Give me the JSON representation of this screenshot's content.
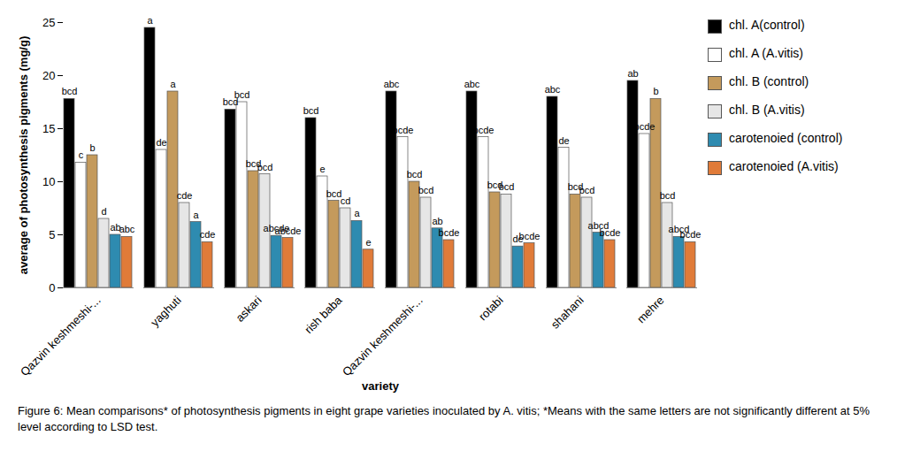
{
  "chart_data": {
    "type": "bar",
    "x_label": "variety",
    "y_label": "average of photosynthesis pigments (mg/g)",
    "caption": "Figure 6: Mean comparisons* of photosynthesis pigments in eight grape varieties inoculated by A. vitis; *Means with the same letters are not significantly different at 5% level according to LSD test.",
    "categories": [
      "Qazvin keshmeshi-...",
      "yaghuti",
      "askari",
      "rish baba",
      "Qazvin keshmeshi-...",
      "rotabi",
      "shahani",
      "mehre"
    ],
    "series": [
      {
        "name": "chl. A(control)",
        "color": "#000000",
        "values": [
          17.8,
          24.5,
          16.8,
          16.0,
          18.5,
          18.5,
          18.0,
          19.5
        ],
        "annotations": [
          "bcd",
          "a",
          "bcd",
          "bcd",
          "abc",
          "abc",
          "abc",
          "ab"
        ]
      },
      {
        "name": "chl. A (A.vitis)",
        "color": "#ffffff",
        "values": [
          11.8,
          13.0,
          17.5,
          10.5,
          14.2,
          14.2,
          13.2,
          14.5
        ],
        "annotations": [
          "c",
          "de",
          "bcd",
          "e",
          "bcde",
          "bcde",
          "de",
          "bcde"
        ]
      },
      {
        "name": "chl. B (control)",
        "color": "#c49a5c",
        "values": [
          12.5,
          18.5,
          11.0,
          8.2,
          10.0,
          9.0,
          8.8,
          17.8
        ],
        "annotations": [
          "b",
          "a",
          "bcd",
          "bcd",
          "bcd",
          "bcd",
          "bcd",
          "b"
        ]
      },
      {
        "name": "chl. B (A.vitis)",
        "color": "#e6e6e6",
        "values": [
          6.5,
          8.0,
          10.7,
          7.5,
          8.5,
          8.8,
          8.5,
          8.0
        ],
        "annotations": [
          "d",
          "cde",
          "bcd",
          "cd",
          "bcd",
          "bcd",
          "bcd",
          "bcd"
        ]
      },
      {
        "name": "carotenoied (control)",
        "color": "#2e8bb0",
        "values": [
          5.0,
          6.2,
          4.9,
          6.3,
          5.6,
          3.9,
          5.2,
          4.8
        ],
        "annotations": [
          "ab",
          "a",
          "abcde",
          "a",
          "ab",
          "de",
          "abcd",
          "abcd"
        ]
      },
      {
        "name": "carotenoied (A.vitis)",
        "color": "#e07b39",
        "values": [
          4.8,
          4.3,
          4.7,
          3.6,
          4.5,
          4.2,
          4.5,
          4.3
        ],
        "annotations": [
          "abc",
          "cde",
          "abcde",
          "e",
          "bcde",
          "bcde",
          "bcde",
          "bcde"
        ]
      }
    ],
    "ylim": [
      0,
      25
    ],
    "yticks": [
      0,
      5,
      10,
      15,
      20,
      25
    ],
    "grid": false,
    "legend": "right"
  }
}
